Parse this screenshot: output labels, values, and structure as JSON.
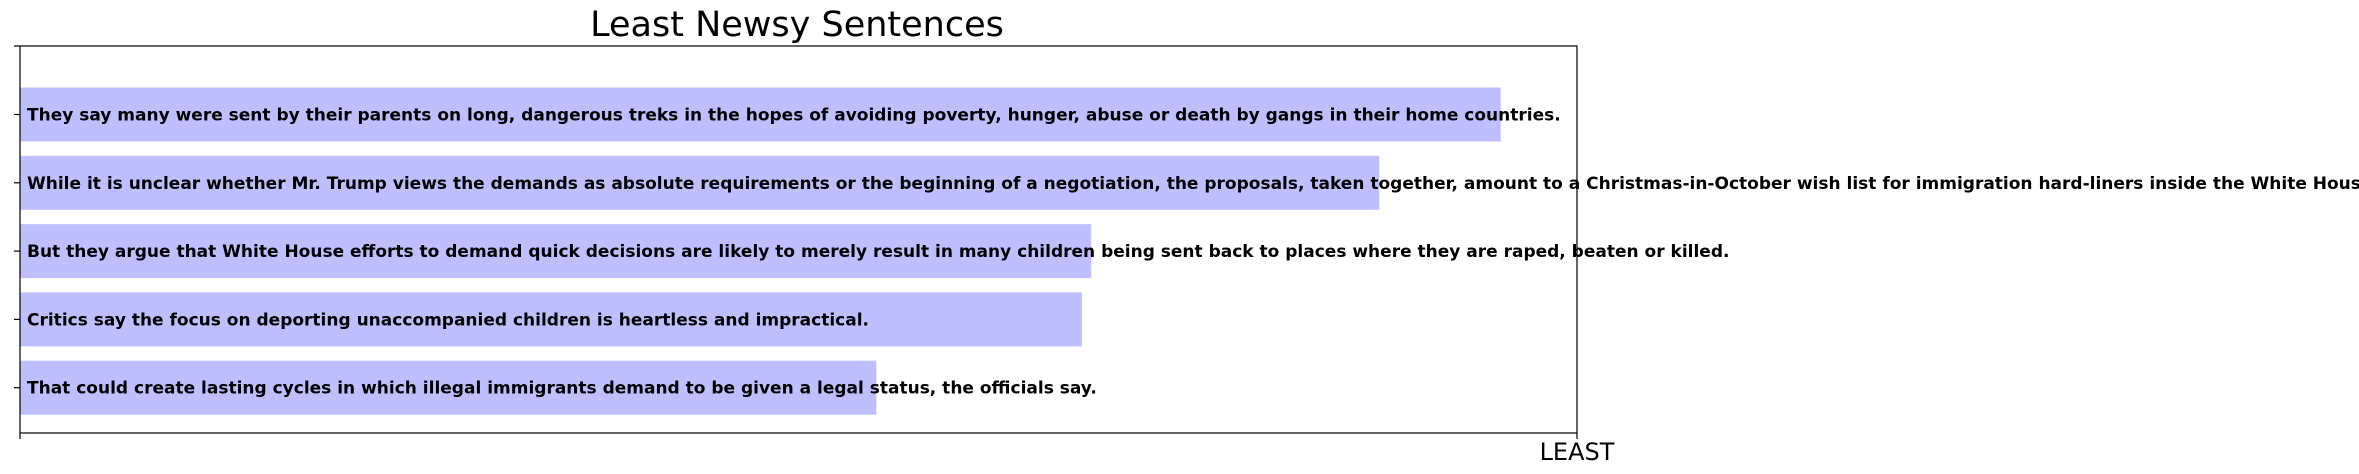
{
  "chart_data": {
    "type": "bar",
    "orientation": "horizontal",
    "title": "Least Newsy Sentences",
    "xlabel": "LEAST",
    "ylabel": "",
    "bar_color": "#bfbfff",
    "xlim": [
      0,
      1
    ],
    "categories": [
      "They say many were sent by their parents on long, dangerous treks in the hopes of avoiding poverty, hunger, abuse or death by gangs in their home countries.",
      "While it is unclear whether Mr. Trump views the demands as absolute requirements or the beginning of a negotiation, the proposals, taken together, amount to a Christmas-in-October wish list for immigration hard-liners inside the White House.",
      "But they argue that White House efforts to demand quick decisions are likely to merely result in many children being sent back to places where they are raped, beaten or killed.",
      "Critics say the focus on deporting unaccompanied children is heartless and impractical.",
      "That could create lasting cycles in which illegal immigrants demand to be given a legal status, the officials say."
    ],
    "values": [
      0.951,
      0.873,
      0.688,
      0.682,
      0.55
    ]
  }
}
